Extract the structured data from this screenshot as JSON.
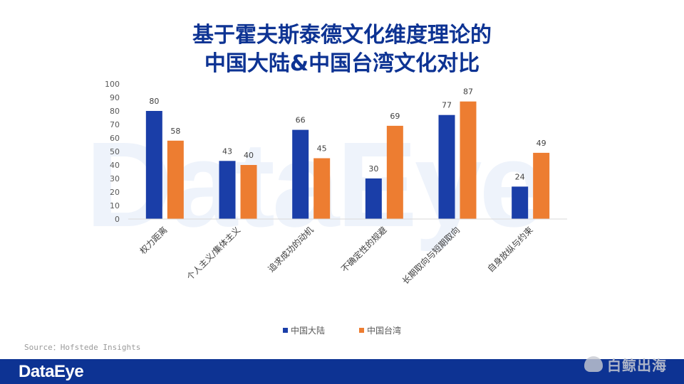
{
  "page": {
    "title_line1": "基于霍夫斯泰德文化维度理论的",
    "title_line2": "中国大陆&中国台湾文化对比",
    "watermark": "DataEye",
    "source": "Source：Hofstede Insights",
    "footer_logo": "DataEye",
    "brand2_text": "白鲸出海"
  },
  "colors": {
    "title": "#0d3393",
    "series1": "#1a3ea8",
    "series2": "#ed7d31",
    "footer": "#0d3393"
  },
  "chart_data": {
    "type": "bar",
    "title": "",
    "xlabel": "",
    "ylabel": "",
    "ylim": [
      0,
      100
    ],
    "yticks": [
      0,
      10,
      20,
      30,
      40,
      50,
      60,
      70,
      80,
      90,
      100
    ],
    "categories": [
      "权力距离",
      "个人主义/集体主义",
      "追求成功的动机",
      "不确定性的规避",
      "长期取向与短期取向",
      "自身放纵与约束"
    ],
    "series": [
      {
        "name": "中国大陆",
        "values": [
          80,
          43,
          66,
          30,
          77,
          24
        ]
      },
      {
        "name": "中国台湾",
        "values": [
          58,
          40,
          45,
          69,
          87,
          49
        ]
      }
    ],
    "legend_position": "bottom",
    "grid": false
  }
}
